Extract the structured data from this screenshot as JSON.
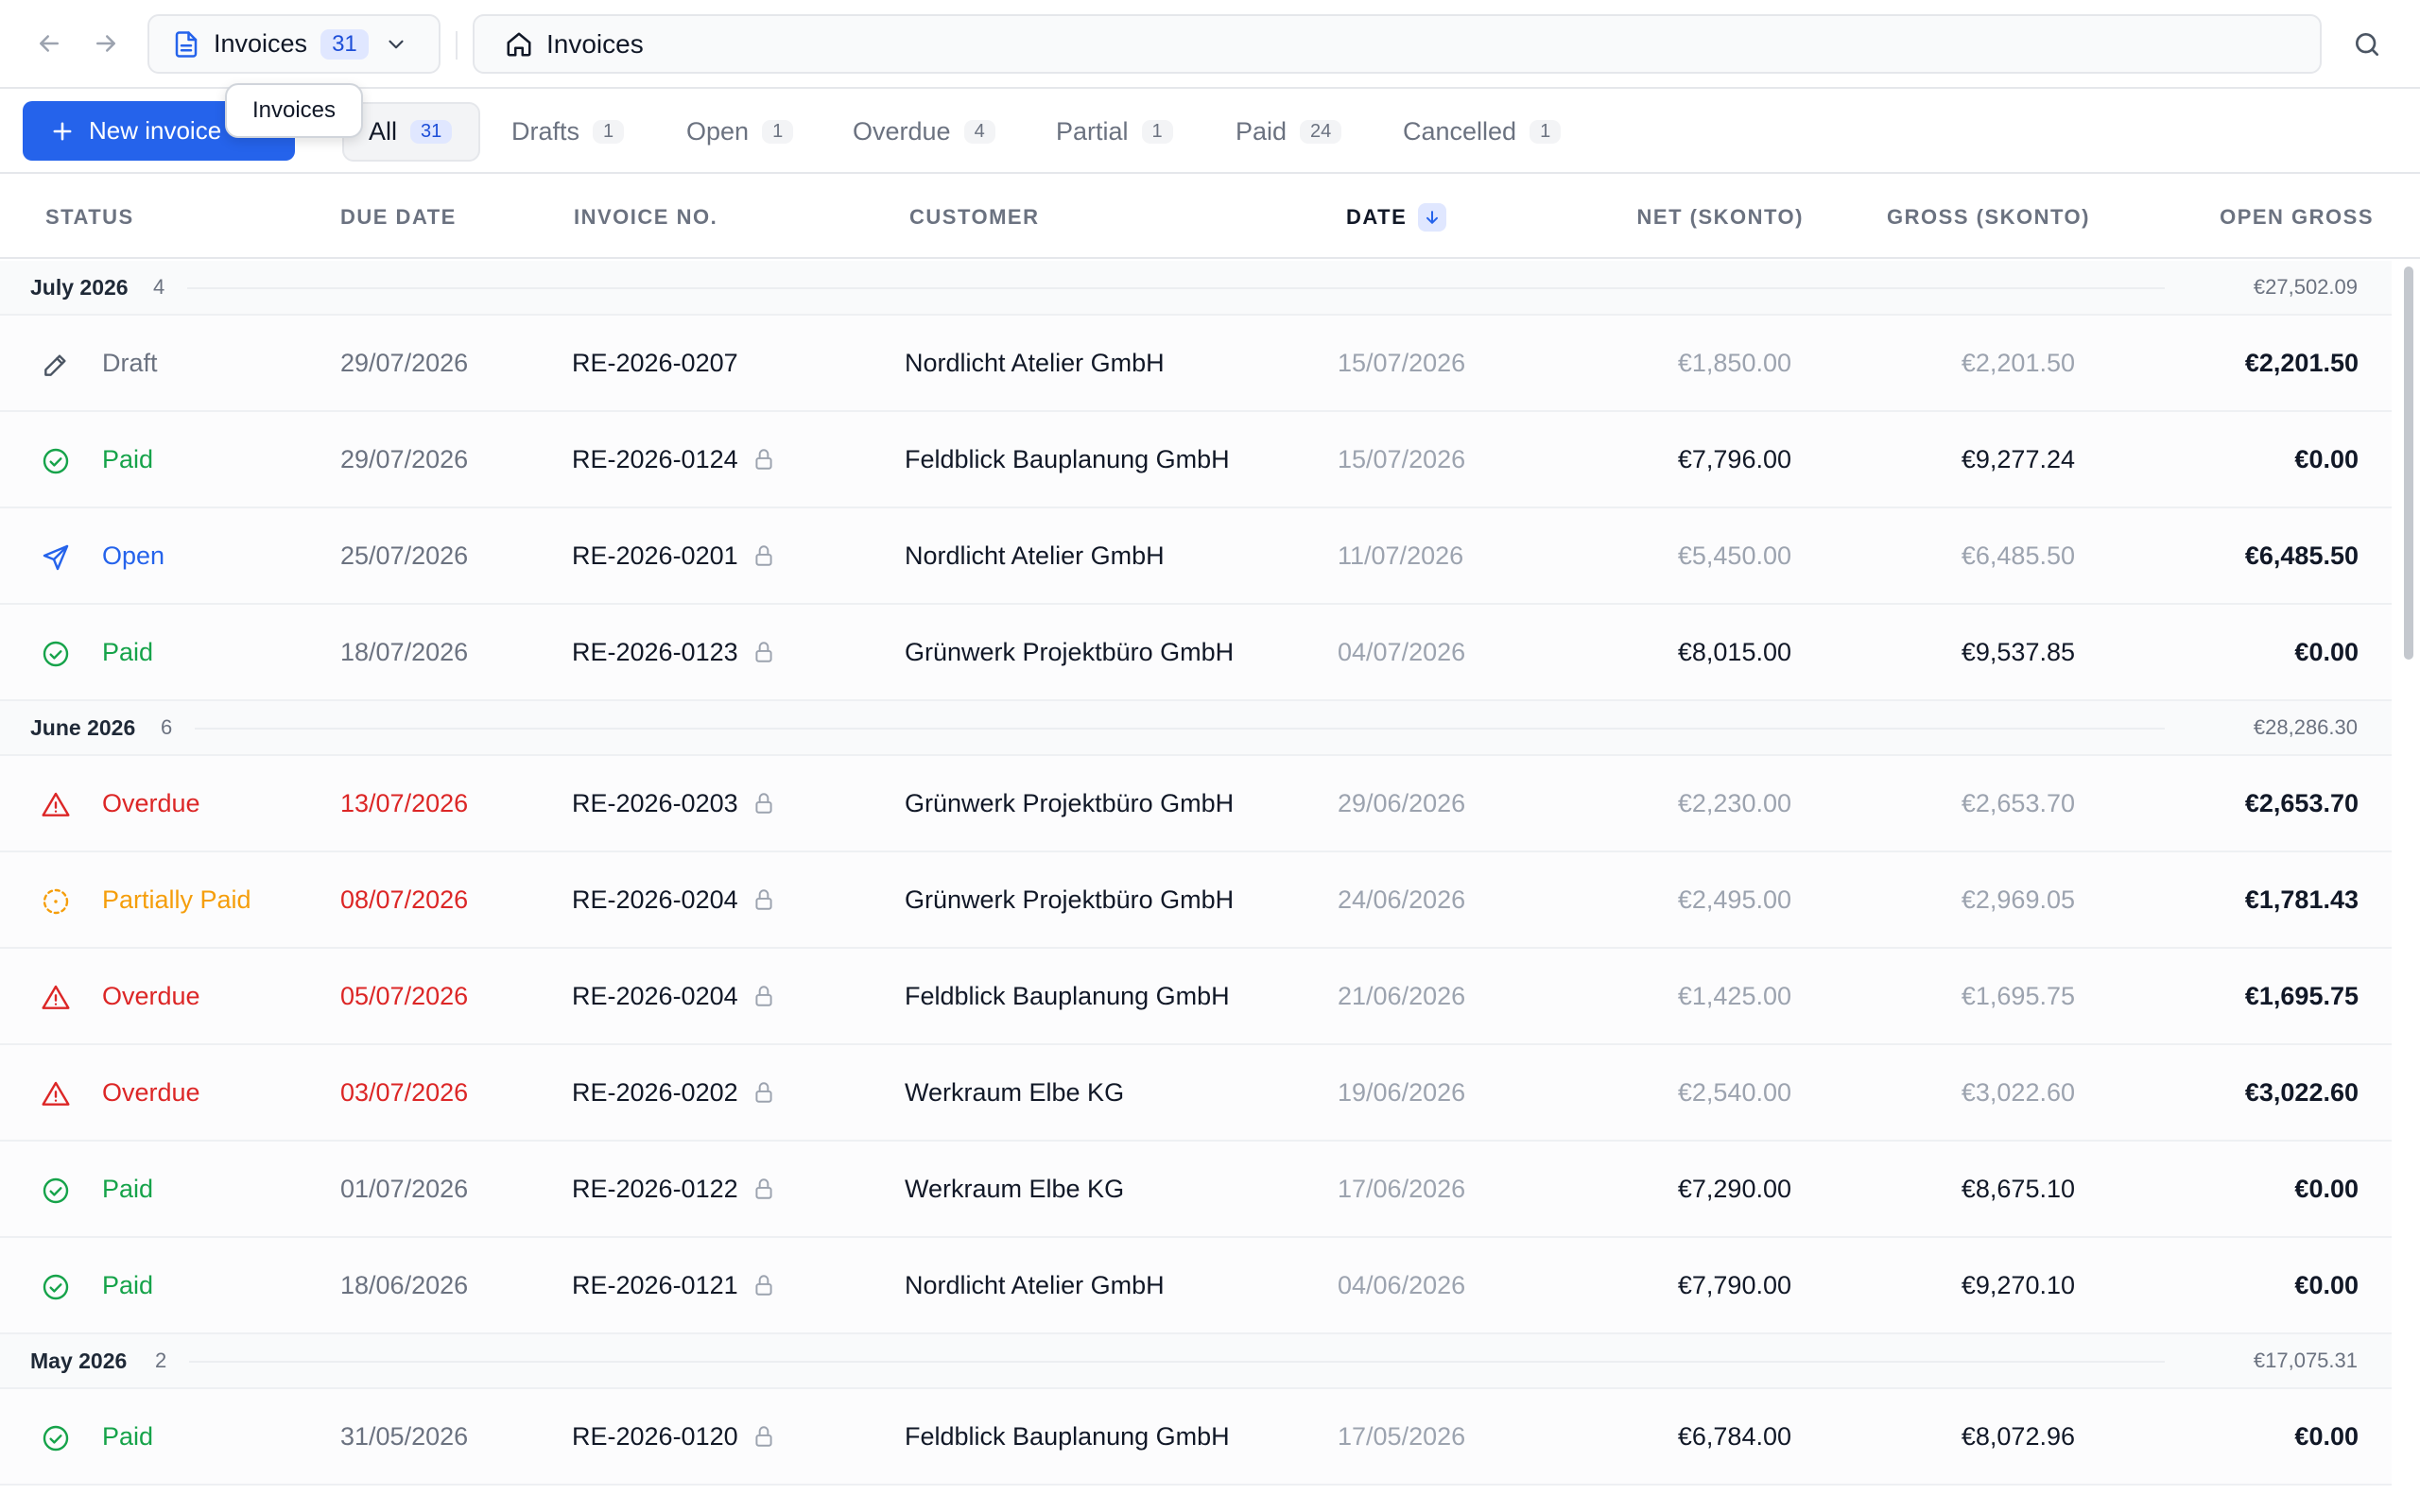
{
  "topbar": {
    "crumb_label": "Invoices",
    "crumb_count": "31",
    "address_label": "Invoices"
  },
  "toolbar": {
    "new_invoice_label": "New invoice",
    "tooltip": "Invoices",
    "tabs": [
      {
        "label": "All",
        "count": "31"
      },
      {
        "label": "Drafts",
        "count": "1"
      },
      {
        "label": "Open",
        "count": "1"
      },
      {
        "label": "Overdue",
        "count": "4"
      },
      {
        "label": "Partial",
        "count": "1"
      },
      {
        "label": "Paid",
        "count": "24"
      },
      {
        "label": "Cancelled",
        "count": "1"
      }
    ]
  },
  "columns": {
    "status": "STATUS",
    "due_date": "DUE DATE",
    "invoice_no": "INVOICE NO.",
    "customer": "CUSTOMER",
    "date": "DATE",
    "net": "NET (SKONTO)",
    "gross": "GROSS (SKONTO)",
    "open_gross": "OPEN GROSS"
  },
  "groups": [
    {
      "name": "July 2026",
      "count": "4",
      "total": "€27,502.09"
    },
    {
      "name": "June 2026",
      "count": "6",
      "total": "€28,286.30"
    },
    {
      "name": "May 2026",
      "count": "2",
      "total": "€17,075.31"
    }
  ],
  "rows": [
    {
      "status": "Draft",
      "due": "29/07/2026",
      "invoice": "RE-2026-0207",
      "customer": "Nordlicht Atelier GmbH",
      "date": "15/07/2026",
      "net": "€1,850.00",
      "gross": "€2,201.50",
      "open": "€2,201.50"
    },
    {
      "status": "Paid",
      "due": "29/07/2026",
      "invoice": "RE-2026-0124",
      "customer": "Feldblick Bauplanung GmbH",
      "date": "15/07/2026",
      "net": "€7,796.00",
      "gross": "€9,277.24",
      "open": "€0.00"
    },
    {
      "status": "Open",
      "due": "25/07/2026",
      "invoice": "RE-2026-0201",
      "customer": "Nordlicht Atelier GmbH",
      "date": "11/07/2026",
      "net": "€5,450.00",
      "gross": "€6,485.50",
      "open": "€6,485.50"
    },
    {
      "status": "Paid",
      "due": "18/07/2026",
      "invoice": "RE-2026-0123",
      "customer": "Grünwerk Projektbüro GmbH",
      "date": "04/07/2026",
      "net": "€8,015.00",
      "gross": "€9,537.85",
      "open": "€0.00"
    },
    {
      "status": "Overdue",
      "due": "13/07/2026",
      "invoice": "RE-2026-0203",
      "customer": "Grünwerk Projektbüro GmbH",
      "date": "29/06/2026",
      "net": "€2,230.00",
      "gross": "€2,653.70",
      "open": "€2,653.70"
    },
    {
      "status": "Partially Paid",
      "due": "08/07/2026",
      "invoice": "RE-2026-0204",
      "customer": "Grünwerk Projektbüro GmbH",
      "date": "24/06/2026",
      "net": "€2,495.00",
      "gross": "€2,969.05",
      "open": "€1,781.43"
    },
    {
      "status": "Overdue",
      "due": "05/07/2026",
      "invoice": "RE-2026-0204",
      "customer": "Feldblick Bauplanung GmbH",
      "date": "21/06/2026",
      "net": "€1,425.00",
      "gross": "€1,695.75",
      "open": "€1,695.75"
    },
    {
      "status": "Overdue",
      "due": "03/07/2026",
      "invoice": "RE-2026-0202",
      "customer": "Werkraum Elbe KG",
      "date": "19/06/2026",
      "net": "€2,540.00",
      "gross": "€3,022.60",
      "open": "€3,022.60"
    },
    {
      "status": "Paid",
      "due": "01/07/2026",
      "invoice": "RE-2026-0122",
      "customer": "Werkraum Elbe KG",
      "date": "17/06/2026",
      "net": "€7,290.00",
      "gross": "€8,675.10",
      "open": "€0.00"
    },
    {
      "status": "Paid",
      "due": "18/06/2026",
      "invoice": "RE-2026-0121",
      "customer": "Nordlicht Atelier GmbH",
      "date": "04/06/2026",
      "net": "€7,790.00",
      "gross": "€9,270.10",
      "open": "€0.00"
    },
    {
      "status": "Paid",
      "due": "31/05/2026",
      "invoice": "RE-2026-0120",
      "customer": "Feldblick Bauplanung GmbH",
      "date": "17/05/2026",
      "net": "€6,784.00",
      "gross": "€8,072.96",
      "open": "€0.00"
    }
  ],
  "colors": {
    "accent": "#2563eb",
    "paid": "#16a34a",
    "overdue": "#dc2626",
    "partial": "#f59e0b",
    "draft": "#6b7280"
  }
}
